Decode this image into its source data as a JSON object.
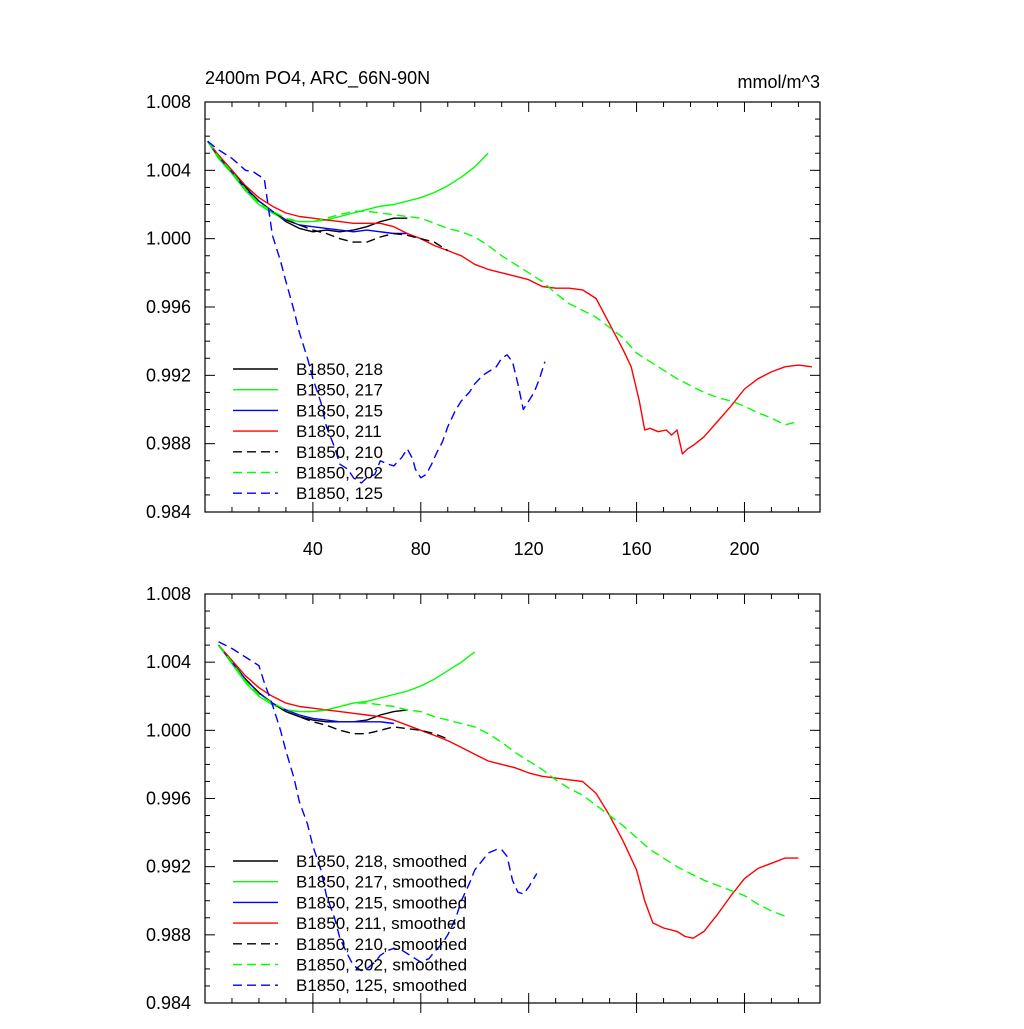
{
  "title_left": "2400m PO4, ARC_66N-90N",
  "title_right": "mmol/m^3",
  "chart_data": [
    {
      "type": "line",
      "panel": "top",
      "xlim": [
        0,
        228
      ],
      "ylim": [
        0.984,
        1.008
      ],
      "yticks": [
        1.008,
        1.004,
        1.0,
        0.996,
        0.992,
        0.988,
        0.984
      ],
      "ytick_labels": [
        "1.008",
        "1.004",
        "1.000",
        "0.996",
        "0.992",
        "0.988",
        "0.984"
      ],
      "xticks": [
        40,
        80,
        120,
        160,
        200
      ],
      "xtick_labels": [
        "40",
        "80",
        "120",
        "160",
        "200"
      ],
      "legend_position": "bottom-left",
      "series": [
        {
          "name": "B1850, 218",
          "color": "#000000",
          "dash": "solid",
          "x": [
            1,
            5,
            10,
            15,
            20,
            25,
            30,
            35,
            40,
            45,
            50,
            55,
            60,
            65,
            70,
            75
          ],
          "y": [
            1.0057,
            1.0048,
            1.004,
            1.003,
            1.0022,
            1.0016,
            1.001,
            1.0006,
            1.0004,
            1.0005,
            1.0004,
            1.0005,
            1.0007,
            1.001,
            1.0012,
            1.0012
          ]
        },
        {
          "name": "B1850, 217",
          "color": "#00ff00",
          "dash": "solid",
          "x": [
            1,
            5,
            10,
            15,
            20,
            25,
            30,
            35,
            40,
            45,
            50,
            55,
            60,
            65,
            70,
            75,
            80,
            85,
            90,
            95,
            100,
            105
          ],
          "y": [
            1.0057,
            1.0047,
            1.0038,
            1.0028,
            1.002,
            1.0015,
            1.0011,
            1.001,
            1.001,
            1.0011,
            1.0013,
            1.0015,
            1.0017,
            1.0019,
            1.002,
            1.0022,
            1.0024,
            1.0027,
            1.0031,
            1.0036,
            1.0042,
            1.005
          ]
        },
        {
          "name": "B1850, 215",
          "color": "#0000ff",
          "dash": "solid",
          "x": [
            1,
            5,
            10,
            15,
            20,
            25,
            30,
            35,
            40,
            45,
            50,
            55,
            60,
            65,
            70,
            75
          ],
          "y": [
            1.0057,
            1.0048,
            1.0039,
            1.0029,
            1.0022,
            1.0016,
            1.0011,
            1.0008,
            1.0007,
            1.0006,
            1.0005,
            1.0004,
            1.0005,
            1.0004,
            1.0003,
            1.0003
          ]
        },
        {
          "name": "B1850, 211",
          "color": "#ff0000",
          "dash": "solid",
          "x": [
            1,
            5,
            10,
            15,
            20,
            25,
            30,
            35,
            40,
            45,
            50,
            55,
            60,
            65,
            70,
            75,
            80,
            85,
            90,
            95,
            100,
            105,
            110,
            115,
            120,
            125,
            130,
            135,
            140,
            145,
            150,
            155,
            158,
            161,
            163,
            165,
            168,
            171,
            173,
            175,
            177,
            179,
            181,
            185,
            190,
            195,
            200,
            205,
            210,
            215,
            220,
            225
          ],
          "y": [
            1.0057,
            1.0049,
            1.004,
            1.0031,
            1.0024,
            1.0019,
            1.0015,
            1.0013,
            1.0012,
            1.0011,
            1.001,
            1.0009,
            1.0009,
            1.0009,
            1.0007,
            1.0003,
            1.0,
            0.9996,
            0.9993,
            0.999,
            0.9985,
            0.9982,
            0.998,
            0.9978,
            0.9976,
            0.9972,
            0.9971,
            0.9971,
            0.997,
            0.9965,
            0.995,
            0.9935,
            0.9925,
            0.9905,
            0.9888,
            0.9889,
            0.9887,
            0.9888,
            0.9885,
            0.9888,
            0.9874,
            0.9877,
            0.9879,
            0.9884,
            0.9893,
            0.9902,
            0.9912,
            0.9918,
            0.9922,
            0.9925,
            0.9926,
            0.9925
          ]
        },
        {
          "name": "B1850, 210",
          "color": "#000000",
          "dash": "dashed",
          "x": [
            1,
            5,
            10,
            15,
            20,
            25,
            30,
            35,
            40,
            45,
            50,
            55,
            60,
            65,
            70,
            75,
            80,
            85,
            90
          ],
          "y": [
            1.0057,
            1.0048,
            1.0039,
            1.003,
            1.0022,
            1.0016,
            1.0011,
            1.0008,
            1.0005,
            1.0003,
            1.0,
            0.9998,
            0.9998,
            1.0001,
            1.0003,
            1.0002,
            1.0,
            0.9998,
            0.9993
          ]
        },
        {
          "name": "B1850, 202",
          "color": "#00ff00",
          "dash": "dashed",
          "x": [
            1,
            5,
            10,
            15,
            20,
            25,
            30,
            35,
            40,
            45,
            50,
            55,
            60,
            65,
            70,
            75,
            80,
            85,
            90,
            95,
            100,
            105,
            110,
            115,
            120,
            125,
            130,
            135,
            140,
            145,
            150,
            155,
            160,
            165,
            170,
            175,
            180,
            185,
            190,
            195,
            200,
            205,
            210,
            215,
            220
          ],
          "y": [
            1.0057,
            1.0048,
            1.0039,
            1.0029,
            1.0021,
            1.0016,
            1.0012,
            1.001,
            1.001,
            1.0012,
            1.0014,
            1.0016,
            1.0016,
            1.0015,
            1.0014,
            1.0013,
            1.0012,
            1.0009,
            1.0006,
            1.0004,
            1.0001,
            0.9996,
            0.999,
            0.9985,
            0.998,
            0.9975,
            0.9968,
            0.9962,
            0.9958,
            0.9954,
            0.9948,
            0.9942,
            0.9933,
            0.9928,
            0.9923,
            0.9918,
            0.9914,
            0.991,
            0.9907,
            0.9905,
            0.9902,
            0.9898,
            0.9895,
            0.9891,
            0.9893
          ]
        },
        {
          "name": "B1850, 125",
          "color": "#0000ff",
          "dash": "dashed",
          "x": [
            1,
            5,
            10,
            15,
            18,
            20,
            22,
            25,
            28,
            30,
            33,
            35,
            38,
            40,
            43,
            45,
            48,
            50,
            53,
            55,
            58,
            60,
            63,
            65,
            68,
            70,
            73,
            75,
            77,
            78,
            80,
            82,
            84,
            86,
            88,
            90,
            93,
            95,
            98,
            100,
            103,
            105,
            108,
            110,
            112,
            114,
            116,
            118,
            120,
            122,
            124,
            126
          ],
          "y": [
            1.0057,
            1.0052,
            1.0047,
            1.004,
            1.0039,
            1.0037,
            1.0035,
            1.0002,
            0.9987,
            0.9975,
            0.9958,
            0.9945,
            0.993,
            0.9918,
            0.9904,
            0.989,
            0.9878,
            0.9868,
            0.9865,
            0.986,
            0.9857,
            0.986,
            0.9862,
            0.987,
            0.9868,
            0.9867,
            0.9872,
            0.9877,
            0.9871,
            0.9865,
            0.986,
            0.9862,
            0.9868,
            0.9875,
            0.9881,
            0.989,
            0.99,
            0.9905,
            0.991,
            0.9915,
            0.992,
            0.9922,
            0.9925,
            0.993,
            0.9932,
            0.9928,
            0.9915,
            0.99,
            0.9905,
            0.991,
            0.9918,
            0.9928
          ]
        }
      ]
    },
    {
      "type": "line",
      "panel": "bottom",
      "xlim": [
        0,
        228
      ],
      "ylim": [
        0.984,
        1.008
      ],
      "yticks": [
        1.008,
        1.004,
        1.0,
        0.996,
        0.992,
        0.988,
        0.984
      ],
      "ytick_labels": [
        "1.008",
        "1.004",
        "1.000",
        "0.996",
        "0.992",
        "0.988",
        "0.984"
      ],
      "legend_position": "bottom-left",
      "series": [
        {
          "name": "B1850, 218, smoothed",
          "color": "#000000",
          "dash": "solid",
          "x": [
            5,
            10,
            15,
            20,
            25,
            30,
            35,
            40,
            45,
            50,
            55,
            60,
            65,
            70,
            75
          ],
          "y": [
            1.005,
            1.004,
            1.003,
            1.0022,
            1.0016,
            1.0011,
            1.0008,
            1.0006,
            1.0005,
            1.0005,
            1.0005,
            1.0006,
            1.0009,
            1.0011,
            1.0012
          ]
        },
        {
          "name": "B1850, 217, smoothed",
          "color": "#00ff00",
          "dash": "solid",
          "x": [
            5,
            10,
            15,
            20,
            25,
            30,
            35,
            40,
            45,
            50,
            55,
            60,
            65,
            70,
            75,
            80,
            85,
            90,
            95,
            100
          ],
          "y": [
            1.005,
            1.0039,
            1.0028,
            1.002,
            1.0015,
            1.0012,
            1.0011,
            1.0011,
            1.0012,
            1.0014,
            1.0016,
            1.0017,
            1.0019,
            1.0021,
            1.0023,
            1.0026,
            1.003,
            1.0035,
            1.004,
            1.0046
          ]
        },
        {
          "name": "B1850, 215, smoothed",
          "color": "#0000ff",
          "dash": "solid",
          "x": [
            5,
            10,
            15,
            20,
            25,
            30,
            35,
            40,
            45,
            50,
            55,
            60,
            65,
            70
          ],
          "y": [
            1.005,
            1.004,
            1.003,
            1.0022,
            1.0016,
            1.0012,
            1.0009,
            1.0007,
            1.0006,
            1.0005,
            1.0005,
            1.0005,
            1.0005,
            1.0004
          ]
        },
        {
          "name": "B1850, 211, smoothed",
          "color": "#ff0000",
          "dash": "solid",
          "x": [
            5,
            10,
            15,
            20,
            25,
            30,
            35,
            40,
            45,
            50,
            55,
            60,
            65,
            70,
            75,
            80,
            85,
            90,
            95,
            100,
            105,
            110,
            115,
            120,
            125,
            130,
            135,
            140,
            145,
            150,
            155,
            160,
            163,
            166,
            170,
            175,
            178,
            181,
            185,
            190,
            195,
            200,
            205,
            210,
            215,
            220
          ],
          "y": [
            1.005,
            1.0041,
            1.0032,
            1.0025,
            1.002,
            1.0016,
            1.0014,
            1.0013,
            1.0012,
            1.0011,
            1.001,
            1.0009,
            1.0008,
            1.0006,
            1.0003,
            1.0,
            0.9997,
            0.9994,
            0.999,
            0.9986,
            0.9982,
            0.998,
            0.9978,
            0.9975,
            0.9973,
            0.9972,
            0.9971,
            0.997,
            0.9963,
            0.995,
            0.9935,
            0.9918,
            0.99,
            0.9887,
            0.9884,
            0.9882,
            0.9879,
            0.9878,
            0.9882,
            0.9892,
            0.9903,
            0.9913,
            0.9919,
            0.9922,
            0.9925,
            0.9925
          ]
        },
        {
          "name": "B1850, 210, smoothed",
          "color": "#000000",
          "dash": "dashed",
          "x": [
            5,
            10,
            15,
            20,
            25,
            30,
            35,
            40,
            45,
            50,
            55,
            60,
            65,
            70,
            75,
            80,
            85,
            90
          ],
          "y": [
            1.005,
            1.004,
            1.003,
            1.0022,
            1.0016,
            1.0011,
            1.0008,
            1.0005,
            1.0003,
            1.0,
            0.9998,
            0.9998,
            1.0,
            1.0002,
            1.0001,
            1.0,
            0.9998,
            0.9995
          ]
        },
        {
          "name": "B1850, 202, smoothed",
          "color": "#00ff00",
          "dash": "dashed",
          "x": [
            5,
            10,
            15,
            20,
            25,
            30,
            35,
            40,
            45,
            50,
            55,
            60,
            65,
            70,
            75,
            80,
            85,
            90,
            95,
            100,
            105,
            110,
            115,
            120,
            125,
            130,
            135,
            140,
            145,
            150,
            155,
            160,
            165,
            170,
            175,
            180,
            185,
            190,
            195,
            200,
            205,
            210,
            215
          ],
          "y": [
            1.005,
            1.004,
            1.0029,
            1.0021,
            1.0016,
            1.0012,
            1.0011,
            1.0011,
            1.0012,
            1.0014,
            1.0016,
            1.0016,
            1.0015,
            1.0014,
            1.0012,
            1.0011,
            1.0008,
            1.0006,
            1.0004,
            1.0002,
            0.9998,
            0.9993,
            0.9987,
            0.9982,
            0.9977,
            0.9971,
            0.9966,
            0.9962,
            0.9956,
            0.995,
            0.9944,
            0.9937,
            0.993,
            0.9925,
            0.992,
            0.9916,
            0.9912,
            0.9909,
            0.9906,
            0.9903,
            0.9898,
            0.9894,
            0.9891
          ]
        },
        {
          "name": "B1850, 125, smoothed",
          "color": "#0000ff",
          "dash": "dashed",
          "x": [
            5,
            10,
            15,
            20,
            22,
            25,
            28,
            30,
            33,
            35,
            38,
            40,
            43,
            45,
            48,
            50,
            53,
            55,
            58,
            60,
            63,
            65,
            68,
            70,
            73,
            75,
            78,
            80,
            83,
            85,
            88,
            90,
            93,
            95,
            98,
            100,
            103,
            105,
            108,
            110,
            112,
            114,
            116,
            118,
            120,
            123
          ],
          "y": [
            1.0052,
            1.0048,
            1.0043,
            1.0038,
            1.0028,
            1.0015,
            1.0,
            0.9988,
            0.9972,
            0.9958,
            0.9945,
            0.9932,
            0.9918,
            0.9903,
            0.989,
            0.9878,
            0.9868,
            0.9862,
            0.9859,
            0.986,
            0.9864,
            0.9868,
            0.9871,
            0.9872,
            0.9871,
            0.9869,
            0.9866,
            0.9864,
            0.9866,
            0.987,
            0.9875,
            0.988,
            0.989,
            0.99,
            0.991,
            0.9918,
            0.9924,
            0.9928,
            0.993,
            0.993,
            0.9926,
            0.9912,
            0.9905,
            0.9904,
            0.9908,
            0.9916
          ]
        }
      ]
    }
  ]
}
